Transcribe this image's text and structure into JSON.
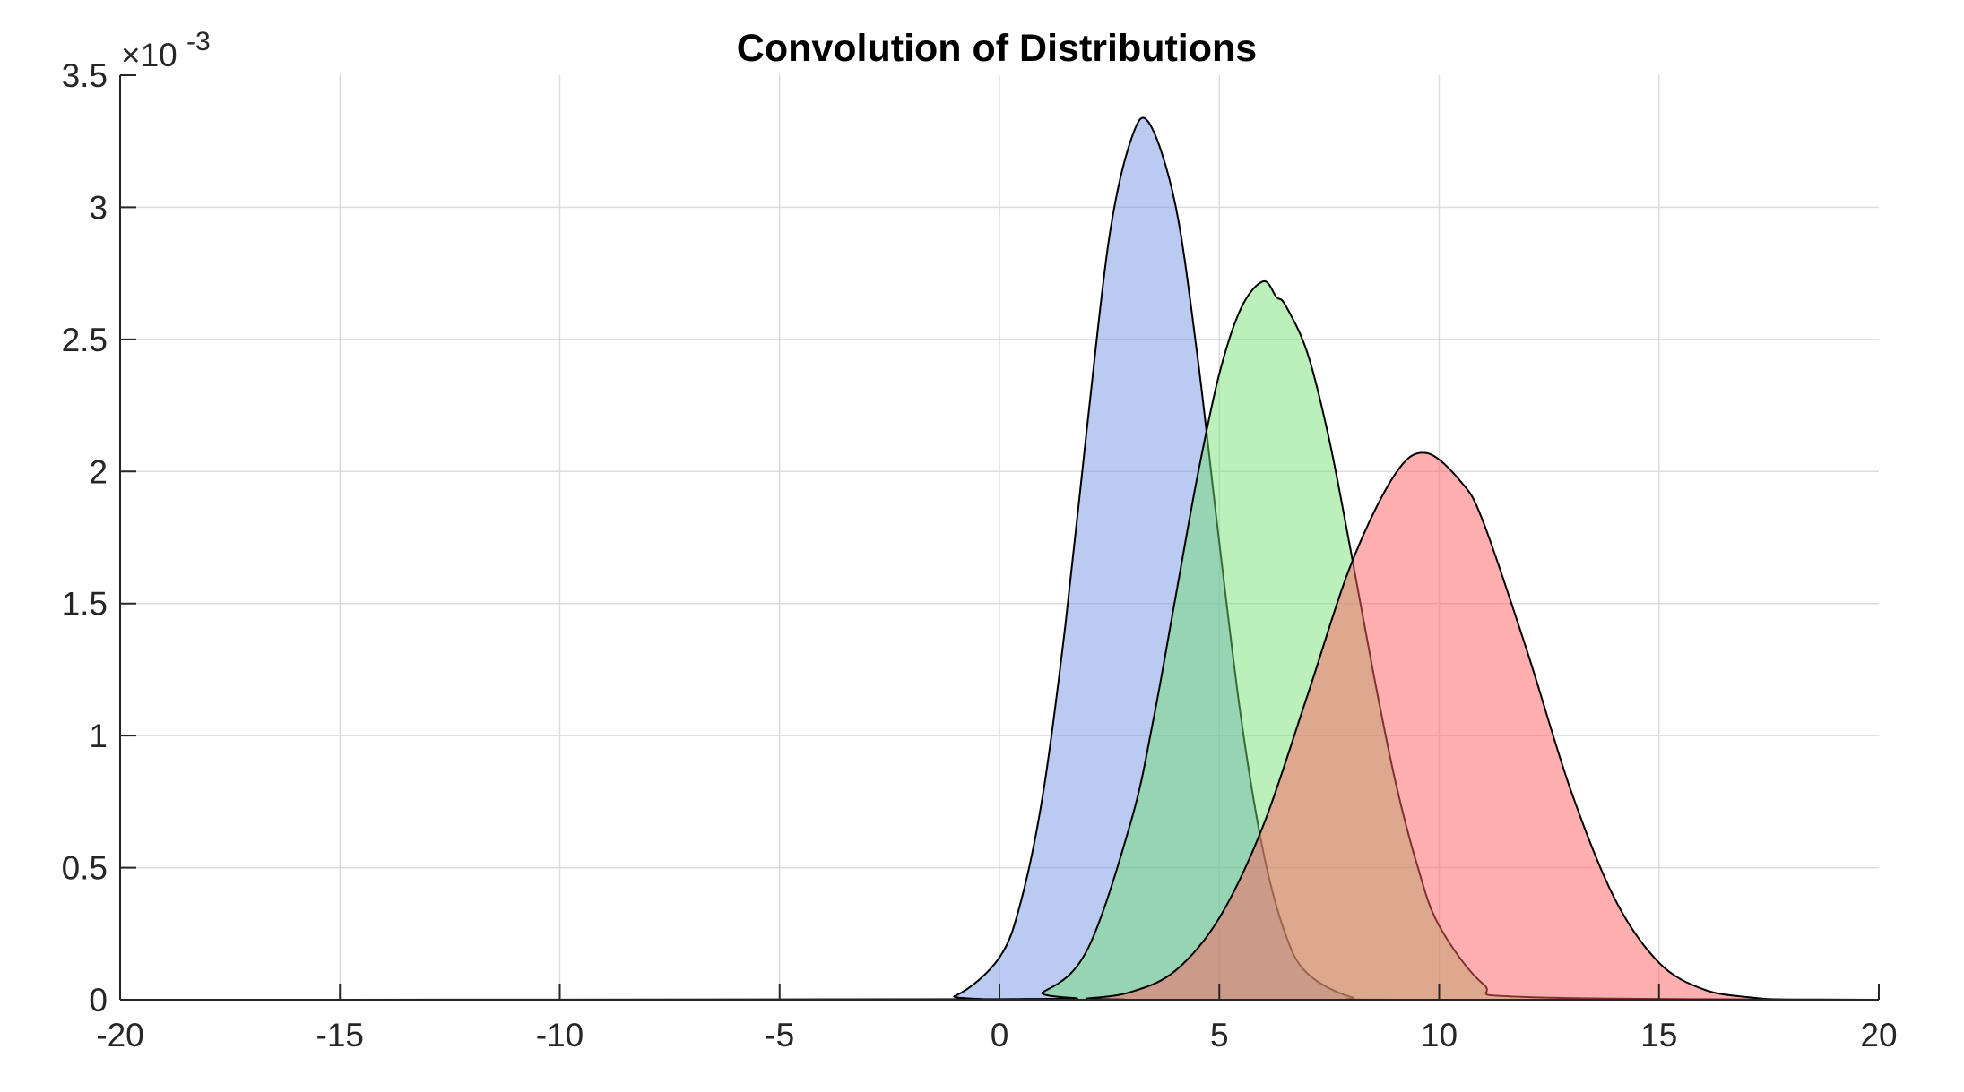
{
  "chart_data": {
    "type": "area",
    "title": "Convolution of Distributions",
    "xlabel": "",
    "ylabel": "",
    "xlim": [
      -20,
      20
    ],
    "ylim": [
      0,
      0.0035
    ],
    "y_exponent_label": "×10",
    "y_exponent_power": "-3",
    "grid": true,
    "legend": "none",
    "x_ticks": [
      -20,
      -15,
      -10,
      -5,
      0,
      5,
      10,
      15,
      20
    ],
    "x_tick_labels": [
      "-20",
      "-15",
      "-10",
      "-5",
      "0",
      "5",
      "10",
      "15",
      "20"
    ],
    "y_ticks": [
      0,
      0.0005,
      0.001,
      0.0015,
      0.002,
      0.0025,
      0.003,
      0.0035
    ],
    "y_tick_labels": [
      "0",
      "0.5",
      "1",
      "1.5",
      "2",
      "2.5",
      "3",
      "3.5"
    ],
    "series": [
      {
        "color": "#7090e0",
        "opacity": 0.48,
        "x": [
          -2,
          -1,
          0,
          0.5,
          1,
          1.5,
          2,
          2.5,
          3,
          3.4,
          4,
          4.5,
          5,
          5.5,
          6,
          6.5,
          7,
          8,
          9
        ],
        "y": [
          0.0,
          1.5e-05,
          0.00016,
          0.00038,
          0.00079,
          0.00142,
          0.00218,
          0.00289,
          0.00326,
          0.00332,
          0.00301,
          0.00244,
          0.00173,
          0.00106,
          0.00056,
          0.00025,
          0.0001,
          1e-05,
          0.0
        ]
      },
      {
        "color": "#70e070",
        "opacity": 0.48,
        "x": [
          0,
          1,
          2,
          3,
          3.5,
          4,
          4.5,
          5,
          5.5,
          6,
          6.3,
          6.5,
          7,
          7.5,
          8,
          8.5,
          9,
          9.5,
          10,
          11,
          12
        ],
        "y": [
          2e-06,
          3e-05,
          0.00019,
          0.00068,
          0.00106,
          0.00152,
          0.00198,
          0.00237,
          0.00262,
          0.00272,
          0.00266,
          0.00263,
          0.00245,
          0.00212,
          0.00169,
          0.00124,
          0.00083,
          0.00051,
          0.00028,
          6e-05,
          1e-05
        ]
      },
      {
        "color": "#ff6060",
        "opacity": 0.5,
        "x": [
          1,
          2,
          3,
          4,
          5,
          6,
          7,
          8,
          9,
          9.7,
          10.5,
          11,
          12,
          13,
          14,
          15,
          16,
          17,
          18
        ],
        "y": [
          0.0,
          5e-06,
          3e-05,
          0.00011,
          0.00031,
          0.00066,
          0.00115,
          0.00165,
          0.00199,
          0.00207,
          0.00196,
          0.00181,
          0.00132,
          0.00079,
          0.00038,
          0.00014,
          4e-05,
          1e-05,
          0.0
        ]
      }
    ]
  }
}
